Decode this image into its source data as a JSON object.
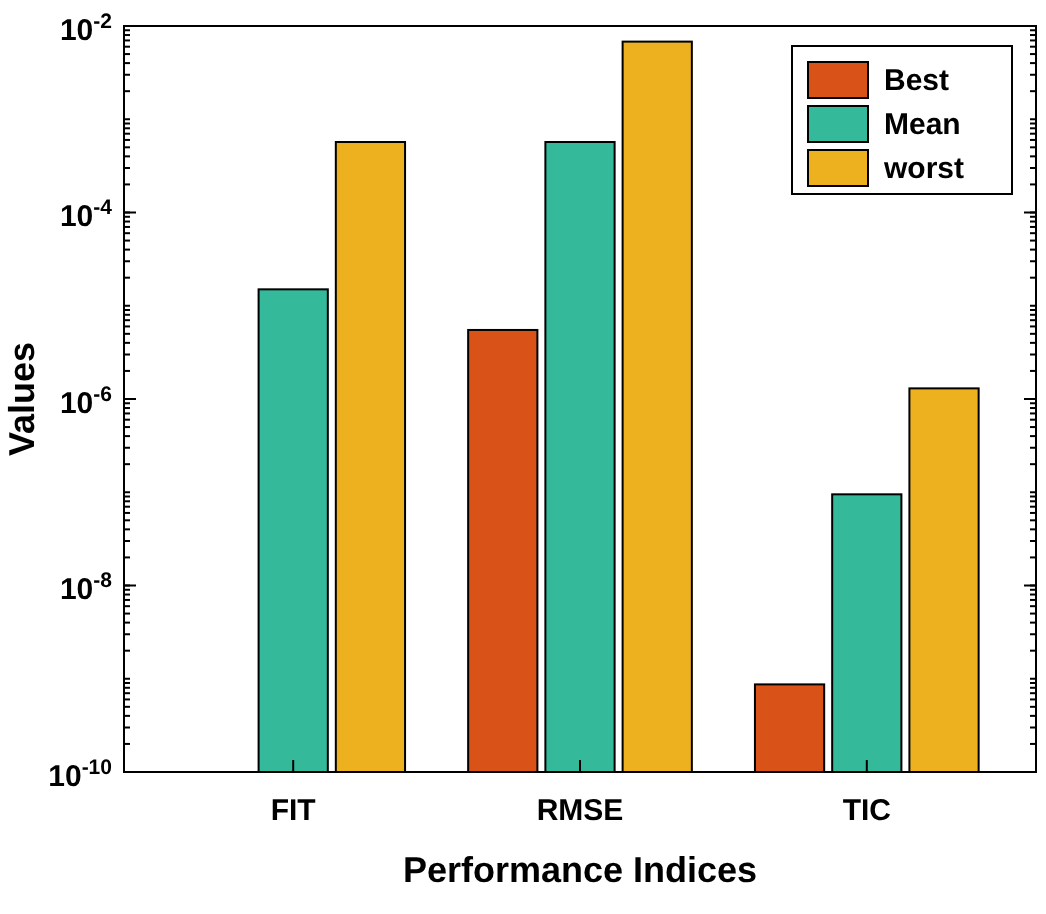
{
  "chart_data": {
    "type": "bar",
    "xlabel": "Performance Indices",
    "ylabel": "Values",
    "categories": [
      "FIT",
      "RMSE",
      "TIC"
    ],
    "series": [
      {
        "name": "Best",
        "color": "#d95319",
        "values": [
          1e-10,
          5.5e-06,
          8.7e-10
        ]
      },
      {
        "name": "Mean",
        "color": "#35b99b",
        "values": [
          1.5e-05,
          0.00057,
          9.5e-08
        ]
      },
      {
        "name": "worst",
        "color": "#edb120",
        "values": [
          0.00057,
          0.0068,
          1.3e-06
        ]
      }
    ],
    "log": true,
    "ylim": [
      1e-10,
      0.01
    ],
    "yticks": [
      {
        "value": 1e-10,
        "label": "10$^{-10}$"
      },
      {
        "value": 1e-08,
        "label": "10$^{-8}$"
      },
      {
        "value": 1e-06,
        "label": "10$^{-6}$"
      },
      {
        "value": 0.0001,
        "label": "10$^{-4}$"
      },
      {
        "value": 0.01,
        "label": "10$^{-2}$"
      }
    ],
    "grid": false,
    "legend": "top right"
  }
}
